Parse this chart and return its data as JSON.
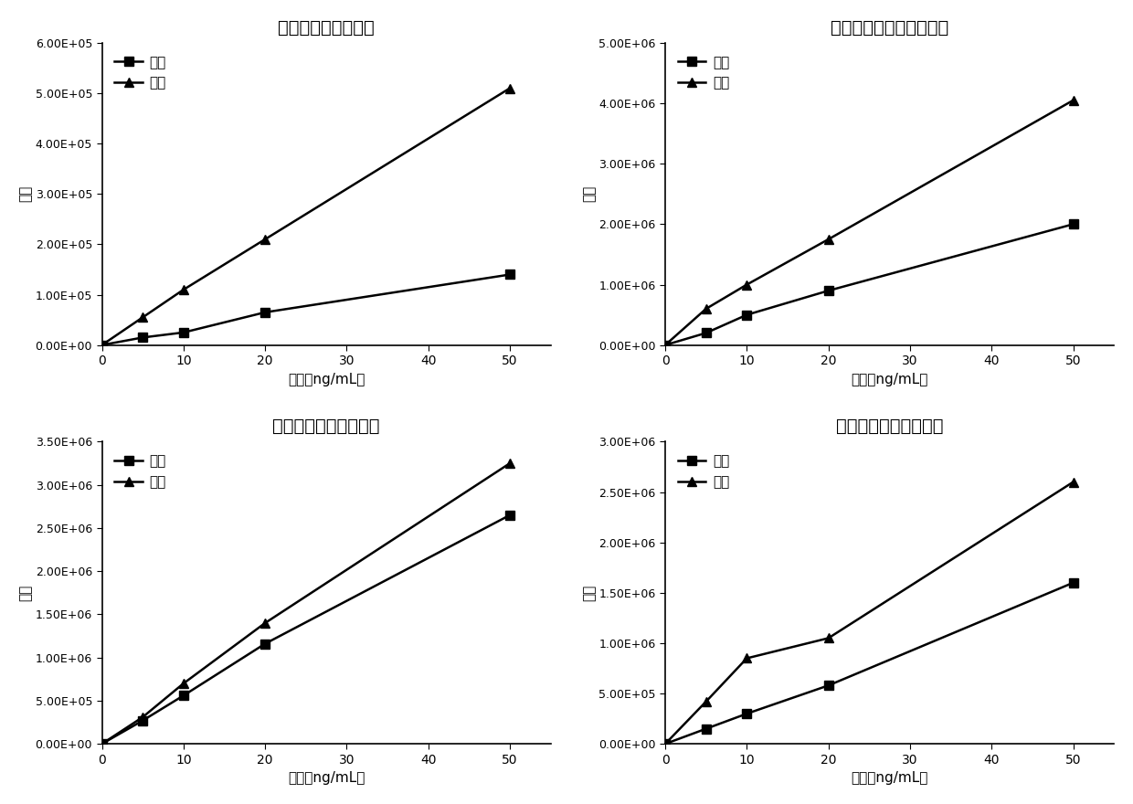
{
  "charts": [
    {
      "title": "有机磷（杀蟟硫磷）",
      "x": [
        0,
        5,
        10,
        20,
        50
      ],
      "matrix": [
        0,
        15000,
        25000,
        65000,
        140000
      ],
      "solvent": [
        0,
        55000,
        110000,
        210000,
        510000
      ],
      "ylim": [
        0,
        600000.0
      ],
      "yticks": [
        0,
        100000.0,
        200000.0,
        300000.0,
        400000.0,
        500000.0,
        600000.0
      ],
      "ytick_labels": [
        "0.00E+00",
        "1.00E+05",
        "2.00E+05",
        "3.00E+05",
        "4.00E+05",
        "5.00E+05",
        "6.00E+05"
      ]
    },
    {
      "title": "氨基甲酸酯类（涕灶威）",
      "x": [
        0,
        5,
        10,
        20,
        50
      ],
      "matrix": [
        0,
        200000,
        500000,
        900000,
        2000000
      ],
      "solvent": [
        0,
        600000,
        1000000,
        1750000,
        4050000
      ],
      "ylim": [
        0,
        5000000.0
      ],
      "yticks": [
        0,
        1000000.0,
        2000000.0,
        3000000.0,
        4000000.0,
        5000000.0
      ],
      "ytick_labels": [
        "0.00E+00",
        "1.00E+06",
        "2.00E+06",
        "3.00E+06",
        "4.00E+06",
        "5.00E+06"
      ]
    },
    {
      "title": "苯基呀唠类（多菌灵）",
      "x": [
        0,
        5,
        10,
        20,
        50
      ],
      "matrix": [
        0,
        270000,
        560000,
        1160000,
        2650000
      ],
      "solvent": [
        0,
        310000,
        700000,
        1400000,
        3250000
      ],
      "ylim": [
        0,
        3500000.0
      ],
      "yticks": [
        0,
        500000.0,
        1000000.0,
        1500000.0,
        2000000.0,
        2500000.0,
        3000000.0,
        3500000.0
      ],
      "ytick_labels": [
        "0.00E+00",
        "5.00E+05",
        "1.00E+06",
        "1.50E+06",
        "2.00E+06",
        "2.50E+06",
        "3.00E+06",
        "3.50E+06"
      ]
    },
    {
      "title": "苯甲酰脲类（灭幼脲）",
      "x": [
        0,
        5,
        10,
        20,
        50
      ],
      "matrix": [
        0,
        150000,
        300000,
        580000,
        1600000
      ],
      "solvent": [
        0,
        420000,
        850000,
        1050000,
        2600000
      ],
      "ylim": [
        0,
        3000000.0
      ],
      "yticks": [
        0,
        500000.0,
        1000000.0,
        1500000.0,
        2000000.0,
        2500000.0,
        3000000.0
      ],
      "ytick_labels": [
        "0.00E+00",
        "5.00E+05",
        "1.00E+06",
        "1.50E+06",
        "2.00E+06",
        "2.50E+06",
        "3.00E+06"
      ]
    }
  ],
  "xlabel": "浓度（ng/mL）",
  "ylabel": "面积",
  "legend_matrix": "基质",
  "legend_solvent": "溶剂",
  "xlim": [
    0,
    55
  ],
  "xticks": [
    0,
    10,
    20,
    30,
    40,
    50
  ],
  "line_color": "#000000",
  "linewidth": 1.8,
  "markersize": 7
}
